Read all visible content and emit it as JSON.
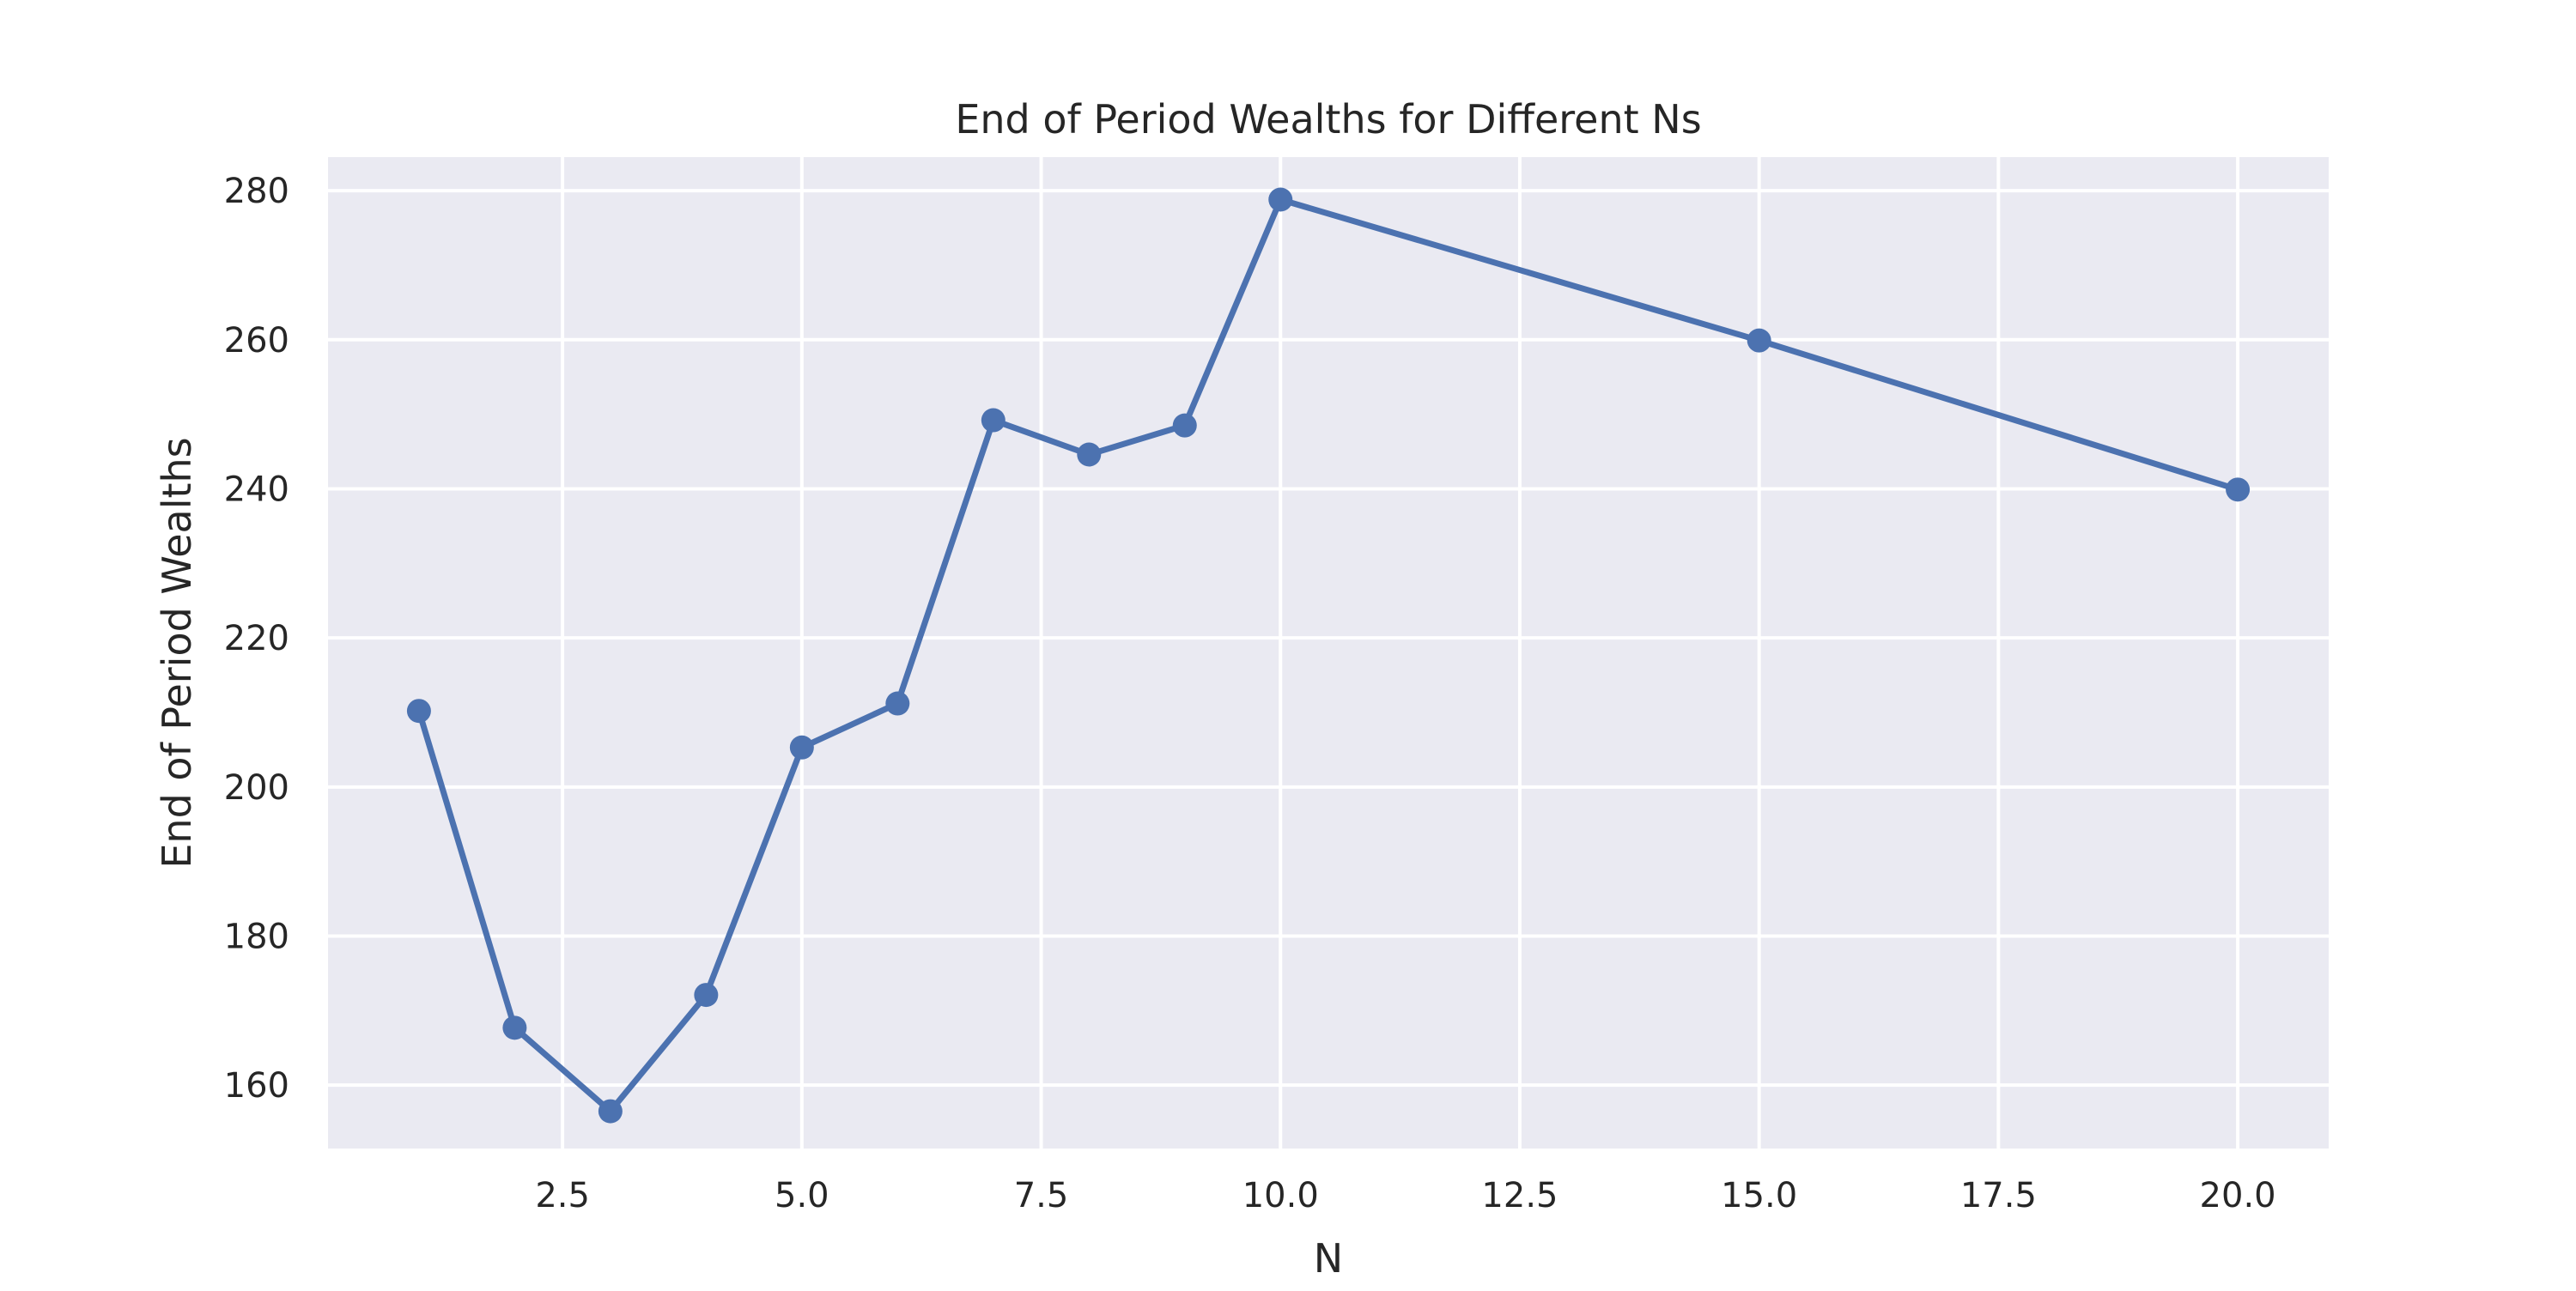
{
  "chart_data": {
    "type": "line",
    "title": "End of Period Wealths for Different Ns",
    "xlabel": "N",
    "ylabel": "End of Period Wealths",
    "x": [
      1,
      2,
      3,
      4,
      5,
      6,
      7,
      8,
      9,
      10,
      15,
      20
    ],
    "series": [
      {
        "name": "",
        "values": [
          210.2,
          167.7,
          156.5,
          172.1,
          205.3,
          211.2,
          249.2,
          244.6,
          248.5,
          278.8,
          259.9,
          239.9
        ]
      }
    ],
    "xlim": [
      0.05,
      20.95
    ],
    "ylim": [
      151.5,
      284.5
    ],
    "xticks": [
      2.5,
      5.0,
      7.5,
      10.0,
      12.5,
      15.0,
      17.5,
      20.0
    ],
    "xtick_labels": [
      "2.5",
      "5.0",
      "7.5",
      "10.0",
      "12.5",
      "15.0",
      "17.5",
      "20.0"
    ],
    "yticks": [
      160,
      180,
      200,
      220,
      240,
      260,
      280
    ],
    "ytick_labels": [
      "160",
      "180",
      "200",
      "220",
      "240",
      "260",
      "280"
    ],
    "grid": true,
    "legend": "none",
    "colors": {
      "line": "#4c72b0",
      "plot_background": "#eaeaf2",
      "grid": "#ffffff",
      "text": "#262626"
    }
  }
}
